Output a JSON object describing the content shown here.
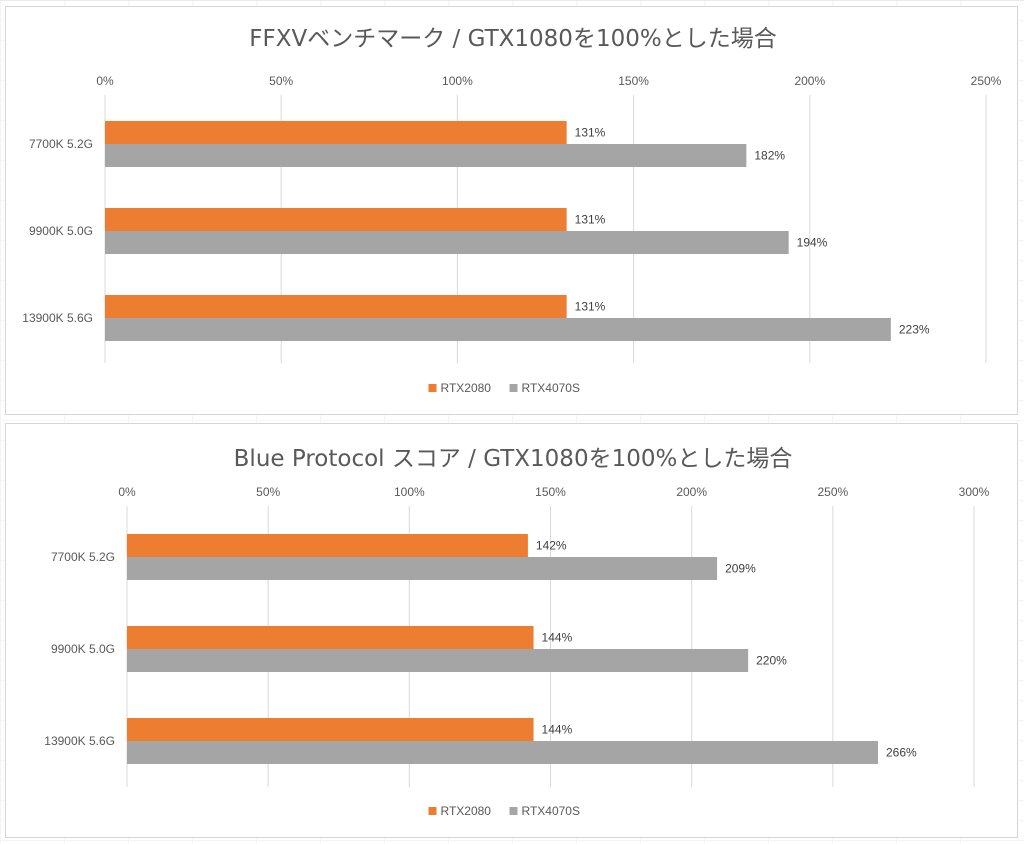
{
  "chart_data": [
    {
      "type": "bar",
      "orientation": "horizontal",
      "title": "FFXVベンチマーク / GTX1080を100%とした場合",
      "categories": [
        "7700K 5.2G",
        "9900K 5.0G",
        "13900K 5.6G"
      ],
      "series": [
        {
          "name": "RTX2080",
          "values": [
            131,
            131,
            131
          ],
          "labels": [
            "131%",
            "131%",
            "131%"
          ],
          "color": "#ed7d31"
        },
        {
          "name": "RTX4070S",
          "values": [
            182,
            194,
            223
          ],
          "labels": [
            "182%",
            "194%",
            "223%"
          ],
          "color": "#a5a5a5"
        }
      ],
      "xlim": [
        0,
        250
      ],
      "xticks": [
        0,
        50,
        100,
        150,
        200,
        250
      ],
      "xtick_labels": [
        "0%",
        "50%",
        "100%",
        "150%",
        "200%",
        "250%"
      ],
      "axis_position": "top",
      "grid": true,
      "legend": "bottom"
    },
    {
      "type": "bar",
      "orientation": "horizontal",
      "title": "Blue Protocol スコア / GTX1080を100%とした場合",
      "categories": [
        "7700K 5.2G",
        "9900K 5.0G",
        "13900K 5.6G"
      ],
      "series": [
        {
          "name": "RTX2080",
          "values": [
            142,
            144,
            144
          ],
          "labels": [
            "142%",
            "144%",
            "144%"
          ],
          "color": "#ed7d31"
        },
        {
          "name": "RTX4070S",
          "values": [
            209,
            220,
            266
          ],
          "labels": [
            "209%",
            "220%",
            "266%"
          ],
          "color": "#a5a5a5"
        }
      ],
      "xlim": [
        0,
        300
      ],
      "xticks": [
        0,
        50,
        100,
        150,
        200,
        250,
        300
      ],
      "xtick_labels": [
        "0%",
        "50%",
        "100%",
        "150%",
        "200%",
        "250%",
        "300%"
      ],
      "axis_position": "top",
      "grid": true,
      "legend": "bottom"
    }
  ],
  "colors": {
    "gridline": "#d9d9d9",
    "axis_line": "#d9d9d9",
    "panel_border": "#d6d6d6"
  }
}
